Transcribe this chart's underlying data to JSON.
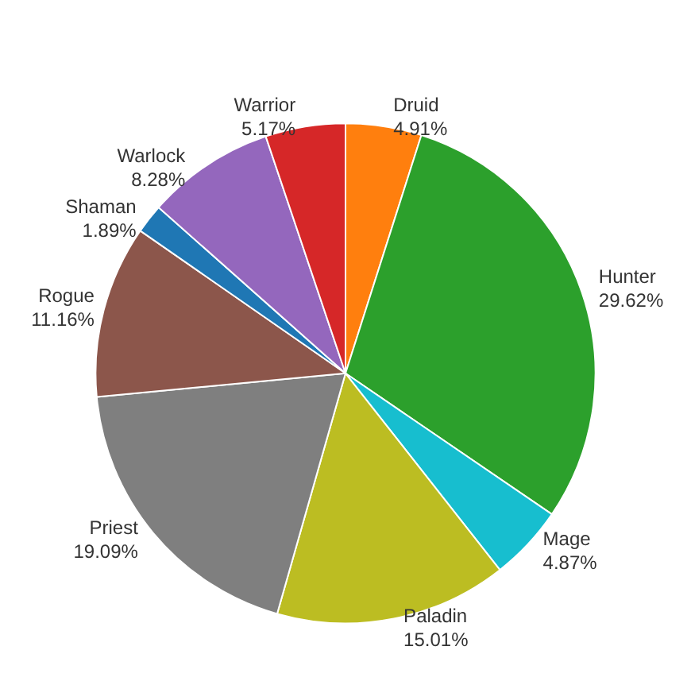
{
  "chart_data": {
    "type": "pie",
    "categories": [
      "Druid",
      "Hunter",
      "Mage",
      "Paladin",
      "Priest",
      "Rogue",
      "Shaman",
      "Warlock",
      "Warrior"
    ],
    "values": [
      4.91,
      29.62,
      4.87,
      15.01,
      19.09,
      11.16,
      1.89,
      8.28,
      5.17
    ],
    "value_labels": [
      "4.91%",
      "29.62%",
      "4.87%",
      "15.01%",
      "19.09%",
      "11.16%",
      "1.89%",
      "8.28%",
      "5.17%"
    ],
    "colors": [
      "#ff7f0e",
      "#2ca02c",
      "#17becf",
      "#bcbd22",
      "#7f7f7f",
      "#8c564b",
      "#1f77b4",
      "#9467bd",
      "#d62728"
    ],
    "legend": false
  }
}
